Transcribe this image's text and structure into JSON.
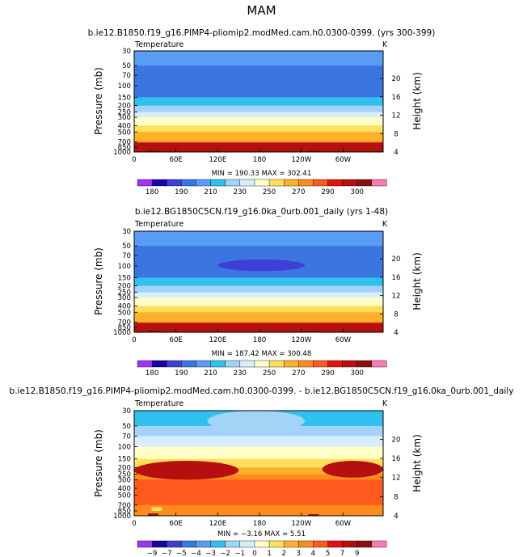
{
  "figure": {
    "season": "MAM"
  },
  "colors": {
    "abs": [
      "#a034f0",
      "#1a00a6",
      "#3f3fd6",
      "#3b76e0",
      "#5a9df5",
      "#2fc0f0",
      "#a4d3f8",
      "#d8eefc",
      "#ffffc8",
      "#ffe05c",
      "#ffb02a",
      "#ff8a1e",
      "#ff5a1e",
      "#e2130f",
      "#b50f0f",
      "#8a1010",
      "#ff78b8"
    ],
    "diff": [
      "#a034f0",
      "#1a00a6",
      "#3f3fd6",
      "#3b76e0",
      "#5a9df5",
      "#2fc0f0",
      "#a4d3f8",
      "#d8eefc",
      "#ffffc8",
      "#ffe05c",
      "#ffb02a",
      "#ff8a1e",
      "#ff5a1e",
      "#e2130f",
      "#b50f0f",
      "#8a1010",
      "#ff78b8"
    ],
    "land": "#111111",
    "line": "#000000"
  },
  "chart_data": [
    {
      "type": "heatmap",
      "id": "panel1",
      "title": "b.ie12.B1850.f19_g16.PIMP4-pliomip2.modMed.cam.h0.0300-0399. (yrs 300-399)",
      "left_label": "Temperature",
      "unit": "K",
      "ylabel": "Pressure  (mb)",
      "ylabel_right": "Height  (km)",
      "xticks": [
        "0",
        "60E",
        "120E",
        "180",
        "120W",
        "60W"
      ],
      "xtick_pos": [
        0,
        60,
        120,
        180,
        240,
        300
      ],
      "xlim": [
        0,
        357.5
      ],
      "yticks": [
        "30",
        "50",
        "70",
        "100",
        "150",
        "200",
        "250",
        "300",
        "400",
        "500",
        "700",
        "850",
        "1000"
      ],
      "ytick_vals": [
        30,
        50,
        70,
        100,
        150,
        200,
        250,
        300,
        400,
        500,
        700,
        850,
        1000
      ],
      "ylim": [
        1000,
        30
      ],
      "height_ticks": [
        "4",
        "8",
        "12",
        "16",
        "20"
      ],
      "height_vals": [
        4,
        8,
        12,
        16,
        20
      ],
      "stats": "MIN = 190.33   MAX = 302.41",
      "colorbar_labels": [
        "180",
        "190",
        "210",
        "230",
        "250",
        "270",
        "290",
        "300"
      ],
      "colorbar_label_bins": [
        1,
        3,
        5,
        7,
        9,
        11,
        13,
        15
      ],
      "levels_pressure": [
        30,
        50,
        100,
        150,
        200,
        250,
        300,
        400,
        500,
        700,
        850,
        1000
      ],
      "level_bins": [
        4,
        3,
        3,
        5,
        6,
        7,
        8,
        9,
        10,
        11,
        12,
        13
      ],
      "features": [
        {
          "bin": 14,
          "lon": [
            0,
            357.5
          ],
          "p": [
            720,
            1000
          ]
        },
        {
          "bin": 15,
          "lon": [
            20,
            35
          ],
          "p": [
            930,
            1000
          ]
        },
        {
          "bin": 15,
          "lon": [
            250,
            265
          ],
          "p": [
            950,
            1000
          ]
        }
      ]
    },
    {
      "type": "heatmap",
      "id": "panel2",
      "title": "b.ie12.BG1850C5CN.f19_g16.0ka_0urb.001_daily (yrs 1-48)",
      "left_label": "Temperature",
      "unit": "K",
      "ylabel": "Pressure  (mb)",
      "ylabel_right": "Height  (km)",
      "xticks": [
        "0",
        "60E",
        "120E",
        "180",
        "120W",
        "60W"
      ],
      "xtick_pos": [
        0,
        60,
        120,
        180,
        240,
        300
      ],
      "xlim": [
        0,
        357.5
      ],
      "yticks": [
        "30",
        "50",
        "70",
        "100",
        "150",
        "200",
        "250",
        "300",
        "400",
        "500",
        "700",
        "850",
        "1000"
      ],
      "ytick_vals": [
        30,
        50,
        70,
        100,
        150,
        200,
        250,
        300,
        400,
        500,
        700,
        850,
        1000
      ],
      "ylim": [
        1000,
        30
      ],
      "height_ticks": [
        "4",
        "8",
        "12",
        "16",
        "20"
      ],
      "height_vals": [
        4,
        8,
        12,
        16,
        20
      ],
      "stats": "MIN = 187.42   MAX = 300.48",
      "colorbar_labels": [
        "180",
        "190",
        "210",
        "230",
        "250",
        "270",
        "290",
        "300"
      ],
      "colorbar_label_bins": [
        1,
        3,
        5,
        7,
        9,
        11,
        13,
        15
      ],
      "levels_pressure": [
        30,
        50,
        100,
        150,
        200,
        250,
        300,
        400,
        500,
        700,
        850,
        1000
      ],
      "level_bins": [
        4,
        3,
        3,
        5,
        6,
        7,
        8,
        9,
        10,
        11,
        12,
        13
      ],
      "features": [
        {
          "bin": 2,
          "lon": [
            120,
            245
          ],
          "p": [
            80,
            120
          ],
          "shape": "ellipse"
        },
        {
          "bin": 14,
          "lon": [
            0,
            357.5
          ],
          "p": [
            720,
            1000
          ]
        },
        {
          "bin": 15,
          "lon": [
            20,
            35
          ],
          "p": [
            930,
            1000
          ]
        },
        {
          "bin": 15,
          "lon": [
            250,
            265
          ],
          "p": [
            950,
            1000
          ]
        }
      ]
    },
    {
      "type": "heatmap",
      "id": "panel3",
      "title": "b.ie12.B1850.f19_g16.PIMP4-pliomip2.modMed.cam.h0.0300-0399. - b.ie12.BG1850C5CN.f19_g16.0ka_0urb.001_daily",
      "left_label": "Temperature",
      "unit": "K",
      "ylabel": "Pressure  (mb)",
      "ylabel_right": "Height  (km)",
      "xticks": [
        "0",
        "60E",
        "120E",
        "180",
        "120W",
        "60W"
      ],
      "xtick_pos": [
        0,
        60,
        120,
        180,
        240,
        300
      ],
      "xlim": [
        0,
        357.5
      ],
      "yticks": [
        "30",
        "50",
        "70",
        "100",
        "150",
        "200",
        "250",
        "300",
        "400",
        "500",
        "700",
        "850",
        "1000"
      ],
      "ytick_vals": [
        30,
        50,
        70,
        100,
        150,
        200,
        250,
        300,
        400,
        500,
        700,
        850,
        1000
      ],
      "ylim": [
        1000,
        30
      ],
      "height_ticks": [
        "4",
        "8",
        "12",
        "16",
        "20"
      ],
      "height_vals": [
        4,
        8,
        12,
        16,
        20
      ],
      "stats": "MIN = −3.16   MAX =    5.51",
      "colorbar_labels": [
        "−9",
        "−7",
        "−5",
        "−4",
        "−3",
        "−2",
        "−1",
        "0",
        "1",
        "2",
        "3",
        "4",
        "5",
        "7",
        "9"
      ],
      "colorbar_label_bins": [
        1,
        2,
        3,
        4,
        5,
        6,
        7,
        8,
        9,
        10,
        11,
        12,
        13,
        14,
        15
      ],
      "levels_pressure": [
        30,
        50,
        70,
        100,
        150,
        200,
        250,
        300,
        400,
        500,
        700,
        850,
        1000
      ],
      "level_bins": [
        5,
        6,
        7,
        8,
        9,
        10,
        11,
        12,
        12,
        12,
        11,
        11,
        11
      ],
      "features": [
        {
          "bin": 6,
          "lon": [
            105,
            245
          ],
          "p": [
            30,
            60
          ],
          "shape": "ellipse"
        },
        {
          "bin": 14,
          "lon": [
            0,
            150
          ],
          "p": [
            160,
            300
          ],
          "shape": "ellipse"
        },
        {
          "bin": 14,
          "lon": [
            270,
            357.5
          ],
          "p": [
            160,
            280
          ],
          "shape": "ellipse"
        },
        {
          "bin": 9,
          "lon": [
            25,
            40
          ],
          "p": [
            750,
            850
          ]
        },
        {
          "bin": 15,
          "lon": [
            20,
            35
          ],
          "p": [
            930,
            1000
          ]
        },
        {
          "bin": 15,
          "lon": [
            250,
            265
          ],
          "p": [
            950,
            1000
          ]
        }
      ]
    }
  ]
}
